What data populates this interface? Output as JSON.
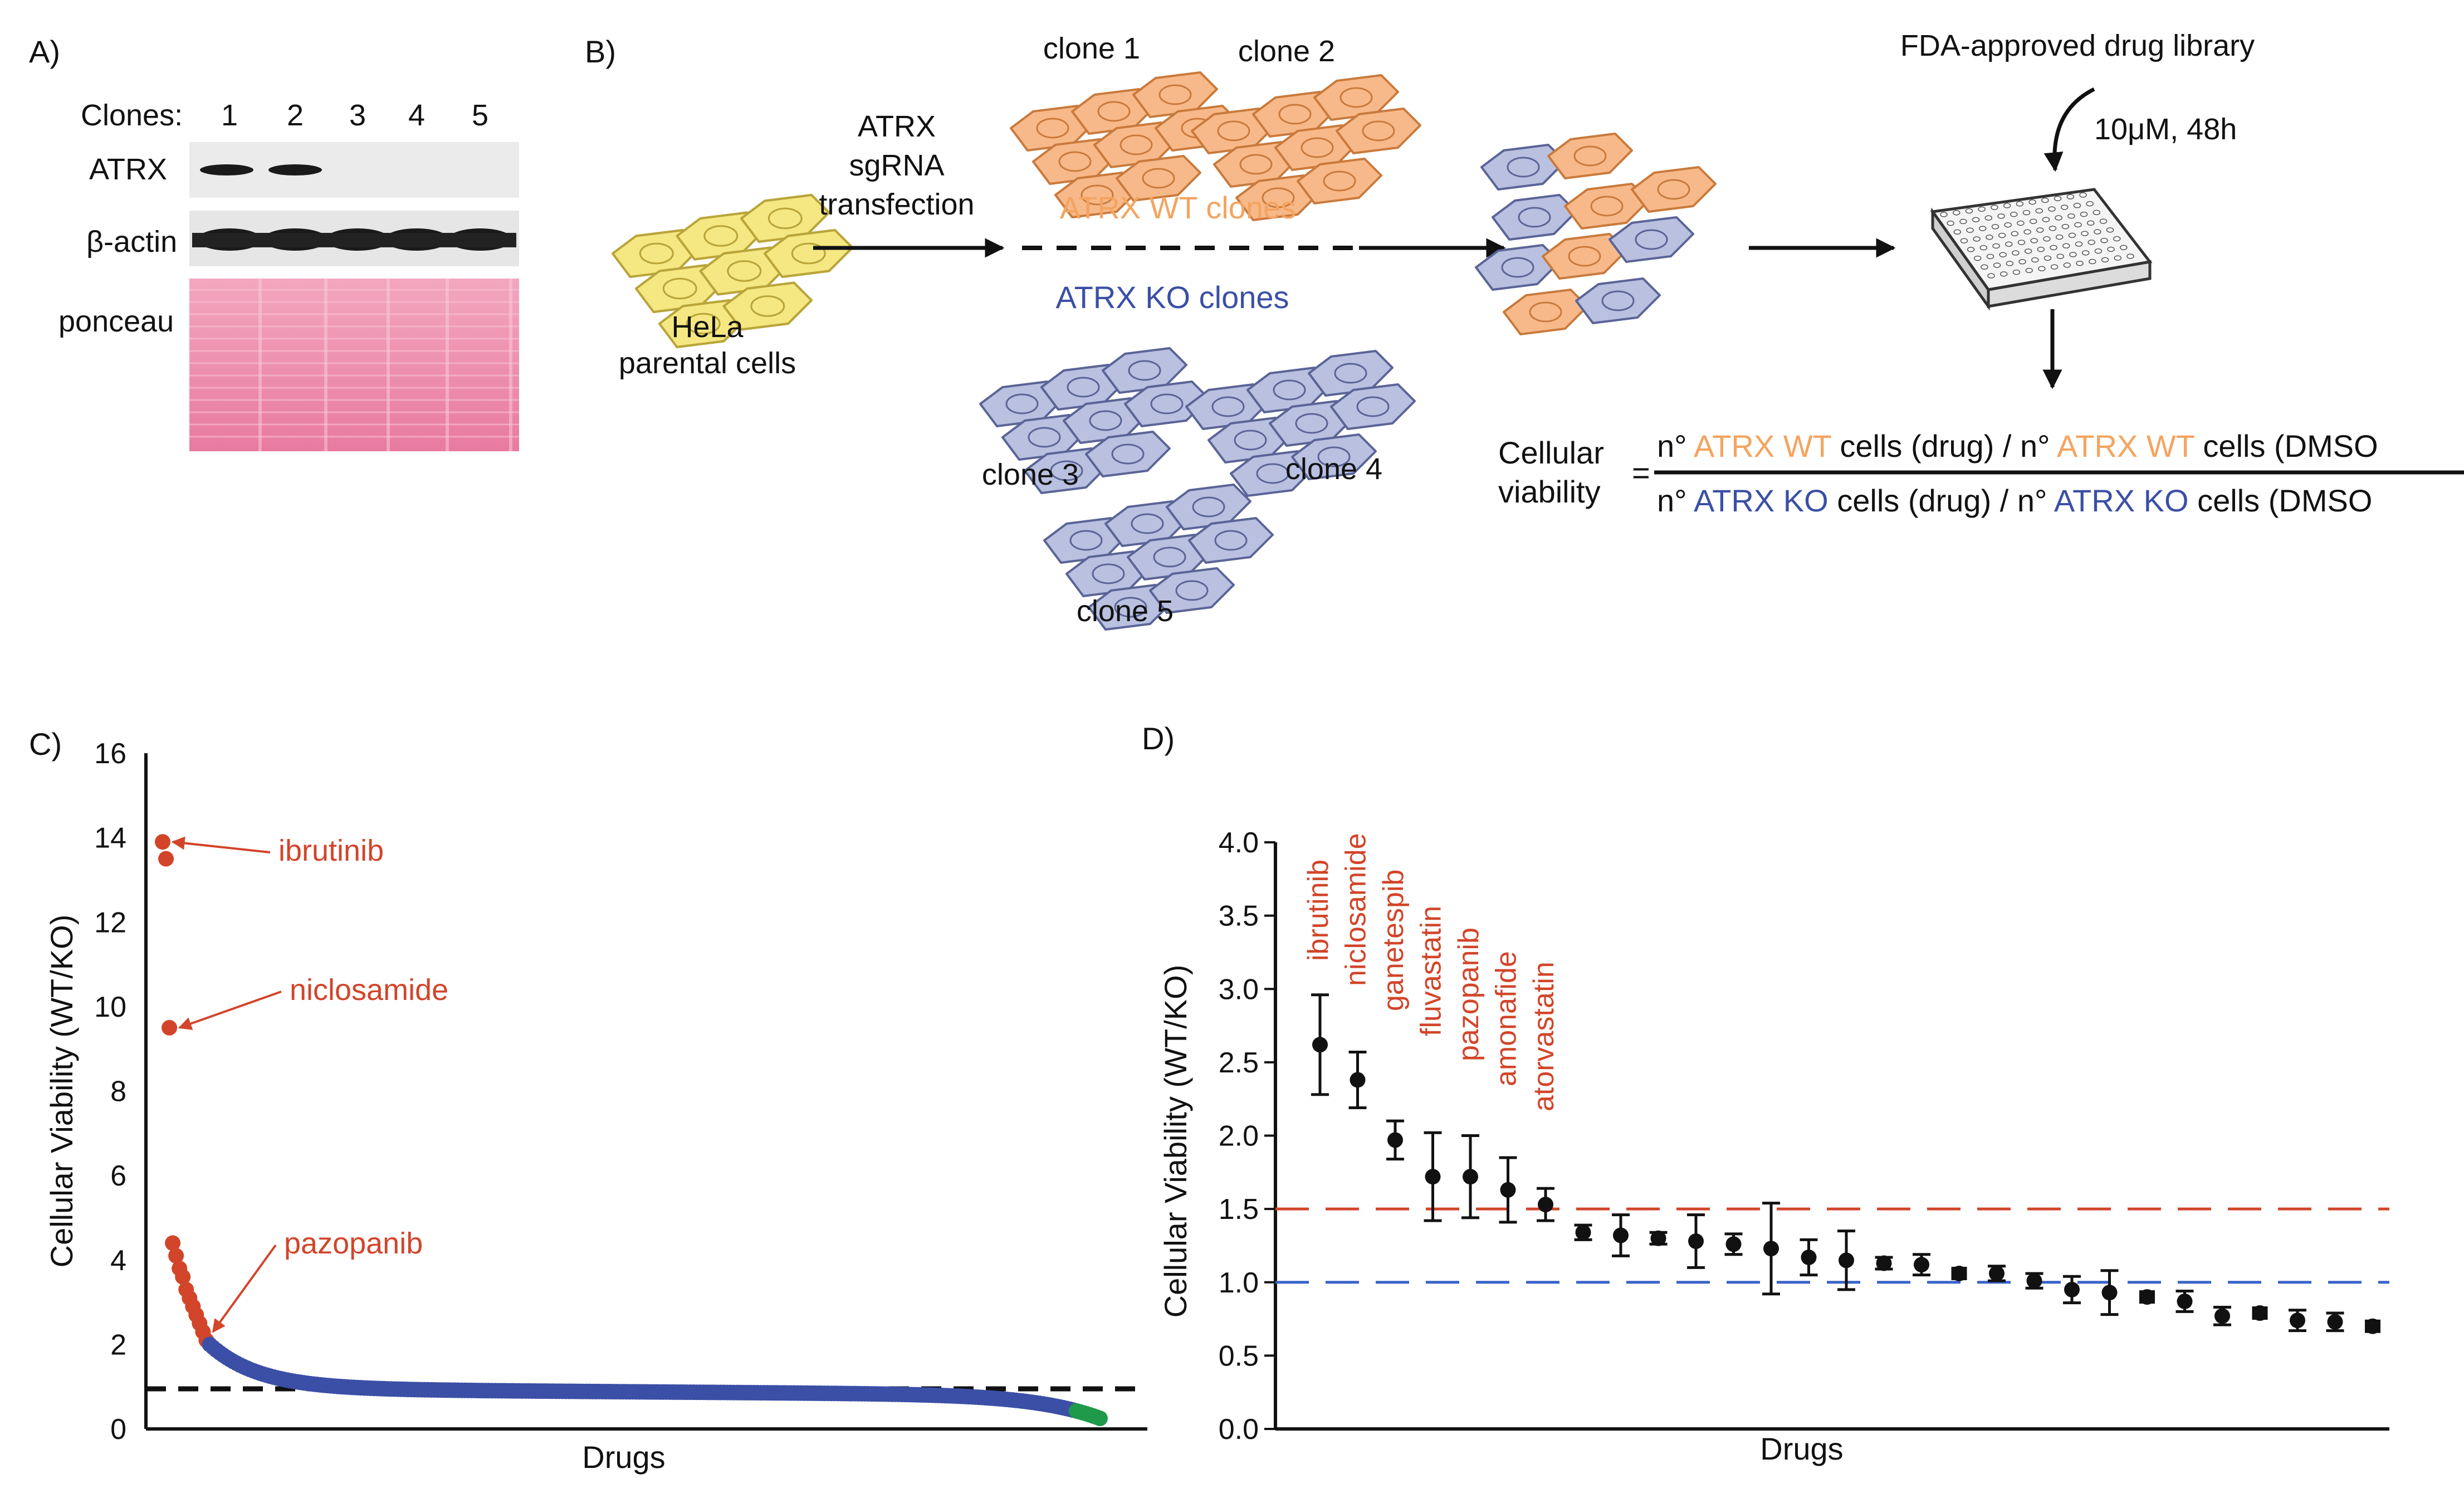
{
  "colors": {
    "orange": "#f4a460",
    "blue": "#3b4fa6",
    "red": "#d2452a",
    "green": "#1e9a4a",
    "black": "#111111",
    "wt_cell": "#f7b98a",
    "ko_cell": "#b9c0e0",
    "parent_cell": "#f5e882",
    "ponceau": "#e98aa8"
  },
  "panel_a": {
    "label": "A)",
    "clones_label": "Clones:",
    "lanes": [
      "1",
      "2",
      "3",
      "4",
      "5"
    ],
    "rows": [
      "ATRX",
      "β-actin",
      "ponceau"
    ],
    "atrx_band_presence": [
      1,
      1,
      0,
      0,
      0
    ]
  },
  "panel_b": {
    "label": "B)",
    "parental": [
      "HeLa",
      "parental cells"
    ],
    "transfection": [
      "ATRX",
      "sgRNA",
      "transfection"
    ],
    "wt_clones_label": "ATRX WT clones",
    "ko_clones_label": "ATRX KO clones",
    "clone_labels": [
      "clone 1",
      "clone 2",
      "clone 3",
      "clone 4",
      "clone 5"
    ],
    "library": "FDA-approved drug library",
    "treatment": "10μM, 48h",
    "viability_label": [
      "Cellular",
      "viability"
    ],
    "equals": "=",
    "num_1": "n° ",
    "num_2": "ATRX WT",
    "num_3": " cells (drug) / n° ",
    "num_4": "ATRX WT",
    "num_5": " cells (DMSO",
    "den_1": "n° ",
    "den_2": "ATRX KO",
    "den_3": " cells (drug) / n° ",
    "den_4": "ATRX KO",
    "den_5": " cells (DMSO"
  },
  "panel_c_label": "C)",
  "panel_d_label": "D)",
  "chart_data": [
    {
      "type": "scatter",
      "panel": "C",
      "title": "",
      "xlabel": "Drugs",
      "ylabel": "Cellular Viability (WT/KO)",
      "ylim": [
        0,
        16
      ],
      "yticks": [
        "0",
        "2",
        "4",
        "6",
        "8",
        "10",
        "12",
        "14",
        "16"
      ],
      "n_drugs": 280,
      "hits": [
        13.9,
        13.5,
        9.5,
        4.4,
        4.1,
        3.8,
        3.6,
        3.3,
        3.1,
        2.9,
        2.7,
        2.5,
        2.3,
        2.1
      ],
      "reference_line": 0.95,
      "annotations": [
        {
          "text": "ibrutinib",
          "point_index": 0
        },
        {
          "text": "niclosamide",
          "point_index": 2
        },
        {
          "text": "pazopanib",
          "point_index": 12
        }
      ]
    },
    {
      "type": "scatter",
      "panel": "D",
      "title": "",
      "xlabel": "Drugs",
      "ylabel": "Cellular Viability (WT/KO)",
      "ylim": [
        0,
        4
      ],
      "yticks": [
        "0.0",
        "0.5",
        "1.0",
        "1.5",
        "2.0",
        "2.5",
        "3.0",
        "3.5",
        "4.0"
      ],
      "red_line": 1.5,
      "blue_line": 1.0,
      "points": [
        {
          "y": 2.62,
          "err": 0.34
        },
        {
          "y": 2.38,
          "err": 0.19
        },
        {
          "y": 1.97,
          "err": 0.13
        },
        {
          "y": 1.72,
          "err": 0.3
        },
        {
          "y": 1.72,
          "err": 0.28
        },
        {
          "y": 1.63,
          "err": 0.22
        },
        {
          "y": 1.53,
          "err": 0.11
        },
        {
          "y": 1.34,
          "err": 0.05
        },
        {
          "y": 1.32,
          "err": 0.14
        },
        {
          "y": 1.3,
          "err": 0.04
        },
        {
          "y": 1.28,
          "err": 0.18
        },
        {
          "y": 1.26,
          "err": 0.07
        },
        {
          "y": 1.23,
          "err": 0.31
        },
        {
          "y": 1.17,
          "err": 0.12
        },
        {
          "y": 1.15,
          "err": 0.2
        },
        {
          "y": 1.13,
          "err": 0.04
        },
        {
          "y": 1.12,
          "err": 0.07
        },
        {
          "y": 1.06,
          "err": 0.03
        },
        {
          "y": 1.06,
          "err": 0.05
        },
        {
          "y": 1.01,
          "err": 0.05
        },
        {
          "y": 0.95,
          "err": 0.09
        },
        {
          "y": 0.93,
          "err": 0.15
        },
        {
          "y": 0.9,
          "err": 0.02
        },
        {
          "y": 0.87,
          "err": 0.07
        },
        {
          "y": 0.77,
          "err": 0.06
        },
        {
          "y": 0.79,
          "err": 0.03
        },
        {
          "y": 0.74,
          "err": 0.07
        },
        {
          "y": 0.73,
          "err": 0.06
        },
        {
          "y": 0.7,
          "err": 0.03
        }
      ],
      "labels": [
        "ibrutinib",
        "niclosamide",
        "ganetespib",
        "fluvastatin",
        "pazopanib",
        "amonafide",
        "atorvastatin"
      ]
    }
  ]
}
